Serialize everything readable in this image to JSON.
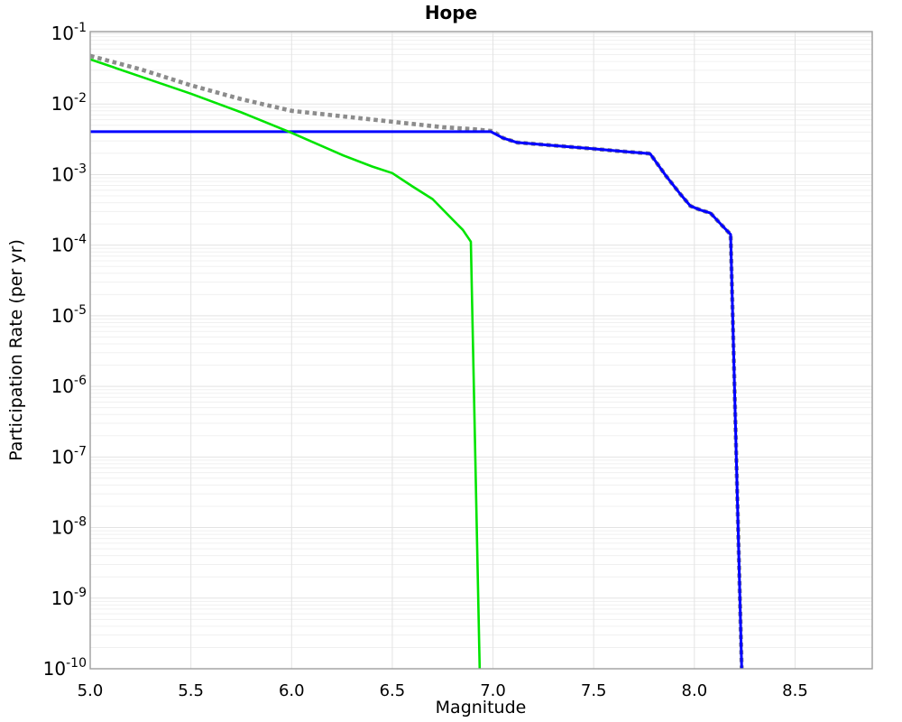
{
  "chart_data": {
    "type": "line",
    "title": "Hope",
    "xlabel": "Magnitude",
    "ylabel": "Participation Rate (per yr)",
    "xlim": [
      5.0,
      8.883
    ],
    "ylim": [
      1e-10,
      0.1
    ],
    "y_scale": "log",
    "grid": "major-and-minor-log",
    "legend": "none",
    "x_ticks": [
      5.0,
      5.5,
      6.0,
      6.5,
      7.0,
      7.5,
      8.0,
      8.5
    ],
    "y_tick_exponents": [
      -1,
      -2,
      -3,
      -4,
      -5,
      -6,
      -7,
      -8,
      -9,
      -10
    ],
    "colors": {
      "gray_dotted": "#8c8c8c",
      "blue_solid": "#0000ff",
      "green_solid": "#00e400",
      "grid_major": "#e3e3e3",
      "grid_minor": "#f0f0f0",
      "border": "#9e9e9e"
    },
    "series": [
      {
        "name": "gray-dotted-curve",
        "color": "#8c8c8c",
        "style": "dotted",
        "width": 4.6,
        "points": [
          [
            5.0,
            0.048
          ],
          [
            5.25,
            0.031
          ],
          [
            5.5,
            0.0184
          ],
          [
            5.75,
            0.0117
          ],
          [
            6.0,
            0.008
          ],
          [
            6.25,
            0.0067
          ],
          [
            6.5,
            0.0056
          ],
          [
            6.75,
            0.0047
          ],
          [
            6.9,
            0.0044
          ],
          [
            7.0,
            0.00412
          ],
          [
            7.05,
            0.0033
          ],
          [
            7.12,
            0.00285
          ],
          [
            7.3,
            0.00258
          ],
          [
            7.5,
            0.00232
          ],
          [
            7.65,
            0.00212
          ],
          [
            7.78,
            0.00198
          ],
          [
            7.86,
            0.00095
          ],
          [
            7.93,
            0.00053
          ],
          [
            7.98,
            0.00036
          ],
          [
            8.03,
            0.000315
          ],
          [
            8.08,
            0.000285
          ],
          [
            8.13,
            0.0002
          ],
          [
            8.18,
            0.000142
          ],
          [
            8.235,
            1e-10
          ]
        ]
      },
      {
        "name": "blue-solid-curve",
        "color": "#0000ff",
        "style": "solid",
        "width": 3,
        "points": [
          [
            5.0,
            0.00405
          ],
          [
            6.99,
            0.00405
          ],
          [
            7.05,
            0.0033
          ],
          [
            7.12,
            0.00285
          ],
          [
            7.3,
            0.00258
          ],
          [
            7.5,
            0.00232
          ],
          [
            7.65,
            0.00212
          ],
          [
            7.78,
            0.00198
          ],
          [
            7.86,
            0.00095
          ],
          [
            7.93,
            0.00053
          ],
          [
            7.98,
            0.00036
          ],
          [
            8.03,
            0.000315
          ],
          [
            8.08,
            0.000285
          ],
          [
            8.13,
            0.0002
          ],
          [
            8.18,
            0.000142
          ],
          [
            8.235,
            1e-10
          ]
        ]
      },
      {
        "name": "green-solid-curve",
        "color": "#00e400",
        "style": "solid",
        "width": 2.6,
        "points": [
          [
            5.0,
            0.043
          ],
          [
            5.25,
            0.0245
          ],
          [
            5.5,
            0.014
          ],
          [
            5.75,
            0.0076
          ],
          [
            6.0,
            0.0039
          ],
          [
            6.25,
            0.0019
          ],
          [
            6.4,
            0.0013
          ],
          [
            6.5,
            0.00105
          ],
          [
            6.6,
            0.00068
          ],
          [
            6.7,
            0.00045
          ],
          [
            6.8,
            0.00023
          ],
          [
            6.85,
            0.000165
          ],
          [
            6.89,
            0.000112
          ],
          [
            6.934,
            1e-10
          ]
        ]
      }
    ]
  }
}
